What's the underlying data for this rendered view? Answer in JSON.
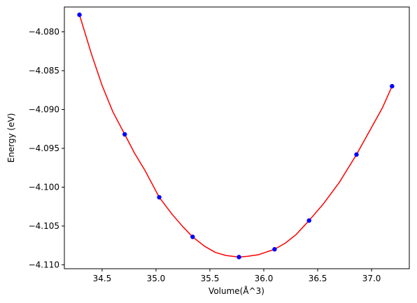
{
  "chart_data": {
    "type": "scatter",
    "title": "",
    "xlabel": "Volume(Å^3)",
    "ylabel": "Energy (eV)",
    "xlim": [
      34.15,
      37.35
    ],
    "ylim": [
      -4.1105,
      -4.0768
    ],
    "xticks": [
      34.5,
      35.0,
      35.5,
      36.0,
      36.5,
      37.0
    ],
    "xtick_labels": [
      "34.5",
      "35.0",
      "35.5",
      "36.0",
      "36.5",
      "37.0"
    ],
    "yticks": [
      -4.08,
      -4.085,
      -4.09,
      -4.095,
      -4.1,
      -4.105,
      -4.11
    ],
    "ytick_labels": [
      "−4.080",
      "−4.085",
      "−4.090",
      "−4.095",
      "−4.100",
      "−4.105",
      "−4.110"
    ],
    "grid": false,
    "series": [
      {
        "kind": "points",
        "color": "#0000ff",
        "x": [
          34.29,
          34.71,
          35.03,
          35.34,
          35.77,
          36.1,
          36.42,
          36.86,
          37.19
        ],
        "y": [
          -4.0778,
          -4.0932,
          -4.1013,
          -4.1064,
          -4.109,
          -4.108,
          -4.1043,
          -4.0958,
          -4.087
        ]
      },
      {
        "kind": "fit-curve",
        "color": "#ff0000",
        "x": [
          34.29,
          34.4,
          34.5,
          34.6,
          34.71,
          34.8,
          34.9,
          35.03,
          35.15,
          35.25,
          35.34,
          35.45,
          35.55,
          35.65,
          35.77,
          35.85,
          35.95,
          36.1,
          36.2,
          36.3,
          36.42,
          36.55,
          36.7,
          36.86,
          37.0,
          37.1,
          37.19
        ],
        "y": [
          -4.0778,
          -4.0828,
          -4.0869,
          -4.0903,
          -4.0932,
          -4.0956,
          -4.0979,
          -4.1013,
          -4.1035,
          -4.1051,
          -4.1064,
          -4.1076,
          -4.1084,
          -4.1088,
          -4.109,
          -4.1089,
          -4.1087,
          -4.108,
          -4.1072,
          -4.1061,
          -4.1043,
          -4.1022,
          -4.0994,
          -4.0958,
          -4.0923,
          -4.0898,
          -4.087
        ]
      }
    ]
  }
}
